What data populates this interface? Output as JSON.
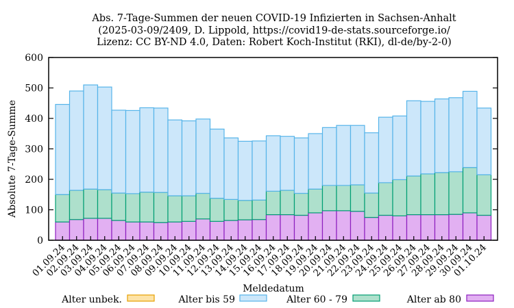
{
  "chart_data": {
    "type": "bar",
    "stacked": true,
    "title_lines": [
      "Abs. 7-Tage-Summen der neuen COVID-19 Infizierten in Sachsen-Anhalt",
      "(2025-03-09/2409, D. Lippold, https://covid19-de-stats.sourceforge.io/",
      "Lizenz: CC BY-ND 4.0, Daten: Robert Koch-Institut (RKI), dl-de/by-2-0)"
    ],
    "xlabel": "Meldedatum",
    "ylabel": "Absolute 7-Tage-Summe",
    "ylim": [
      0,
      600
    ],
    "yticks": [
      0,
      100,
      200,
      300,
      400,
      500,
      600
    ],
    "grid": false,
    "legend_position": "bottom",
    "categories": [
      "01.09.24",
      "02.09.24",
      "03.09.24",
      "04.09.24",
      "05.09.24",
      "06.09.24",
      "07.09.24",
      "08.09.24",
      "09.09.24",
      "10.09.24",
      "11.09.24",
      "12.09.24",
      "13.09.24",
      "14.09.24",
      "15.09.24",
      "16.09.24",
      "17.09.24",
      "18.09.24",
      "19.09.24",
      "20.09.24",
      "21.09.24",
      "22.09.24",
      "23.09.24",
      "24.09.24",
      "25.09.24",
      "26.09.24",
      "27.09.24",
      "28.09.24",
      "29.09.24",
      "30.09.24",
      "01.10.24"
    ],
    "series": [
      {
        "name": "Alter unbek.",
        "fill": "#fde3a7",
        "stroke": "#e69f00",
        "values": [
          0,
          0,
          0,
          0,
          0,
          0,
          0,
          0,
          0,
          0,
          0,
          0,
          0,
          0,
          0,
          0,
          0,
          0,
          0,
          0,
          0,
          0,
          0,
          0,
          0,
          0,
          0,
          0,
          0,
          0,
          0
        ]
      },
      {
        "name": "Alter ab 80",
        "fill": "#e2b0f2",
        "stroke": "#8d1fbf",
        "values": [
          60,
          68,
          72,
          72,
          65,
          60,
          60,
          58,
          60,
          62,
          70,
          62,
          65,
          67,
          68,
          84,
          84,
          82,
          90,
          97,
          97,
          95,
          75,
          82,
          80,
          84,
          84,
          84,
          85,
          90,
          82
        ]
      },
      {
        "name": "Alter 60 - 79",
        "fill": "#aee0cc",
        "stroke": "#009e73",
        "values": [
          90,
          96,
          96,
          94,
          90,
          93,
          98,
          99,
          86,
          84,
          84,
          76,
          69,
          64,
          64,
          77,
          80,
          72,
          78,
          83,
          83,
          87,
          80,
          107,
          119,
          127,
          134,
          138,
          140,
          149,
          133
        ]
      },
      {
        "name": "Alter bis 59",
        "fill": "#cce7fa",
        "stroke": "#56b4e9",
        "values": [
          296,
          326,
          342,
          337,
          272,
          273,
          277,
          277,
          249,
          246,
          244,
          227,
          202,
          194,
          194,
          182,
          177,
          182,
          182,
          190,
          197,
          195,
          198,
          215,
          209,
          247,
          238,
          242,
          243,
          250,
          219
        ]
      }
    ],
    "legend_order": [
      "Alter unbek.",
      "Alter bis 59",
      "Alter 60 - 79",
      "Alter ab 80"
    ]
  }
}
